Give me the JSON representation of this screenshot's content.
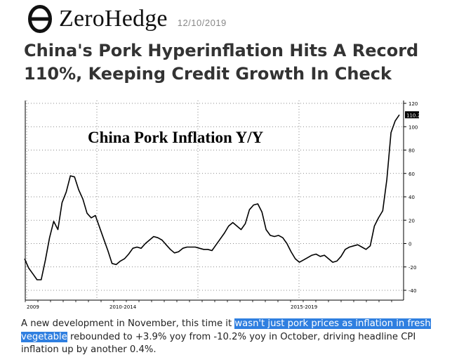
{
  "header": {
    "brand": "ZeroHedge",
    "date": "12/10/2019"
  },
  "headline": "China's Pork Hyperinflation Hits A Record 110%, Keeping Credit Growth In Check",
  "chart_data": {
    "type": "line",
    "title": "China Pork Inflation Y/Y",
    "x_tick_labels": [
      "2009",
      "2010-2014",
      "2015-2019"
    ],
    "y_ticks": [
      120,
      100,
      80,
      60,
      40,
      20,
      0,
      -20,
      -40
    ],
    "ylim": [
      -40,
      120
    ],
    "y_axis_position": "right",
    "grid": true,
    "last_value_label": "110.2",
    "series": [
      {
        "values": [
          -13,
          -21,
          -26,
          -31,
          -31,
          -14,
          5,
          19,
          12,
          35,
          44,
          58,
          57,
          46,
          38,
          26,
          22,
          24,
          14,
          4,
          -6,
          -17,
          -18,
          -15,
          -13,
          -9,
          -4,
          -3,
          -4,
          0,
          3,
          6,
          5,
          3,
          -1,
          -5,
          -8,
          -7,
          -4,
          -3,
          -3,
          -3,
          -4,
          -5,
          -5,
          -6,
          -1,
          4,
          9,
          15,
          18,
          15,
          12,
          17,
          29,
          33,
          34,
          27,
          12,
          7,
          6,
          7,
          5,
          0,
          -7,
          -13,
          -16,
          -14,
          -12,
          -10,
          -9,
          -11,
          -10,
          -13,
          -16,
          -15,
          -11,
          -5,
          -3,
          -2,
          -1,
          -3,
          -5,
          -2,
          15,
          22,
          28,
          55,
          95,
          105,
          110.2
        ]
      }
    ]
  },
  "article": {
    "text_before": "A new development in November, this time it ",
    "highlight": "wasn't just pork prices as inflation in fresh vegetable",
    "text_after": " rebounded to +3.9% yoy from -10.2% yoy in October, driving headline CPI inflation up by another 0.4%."
  }
}
